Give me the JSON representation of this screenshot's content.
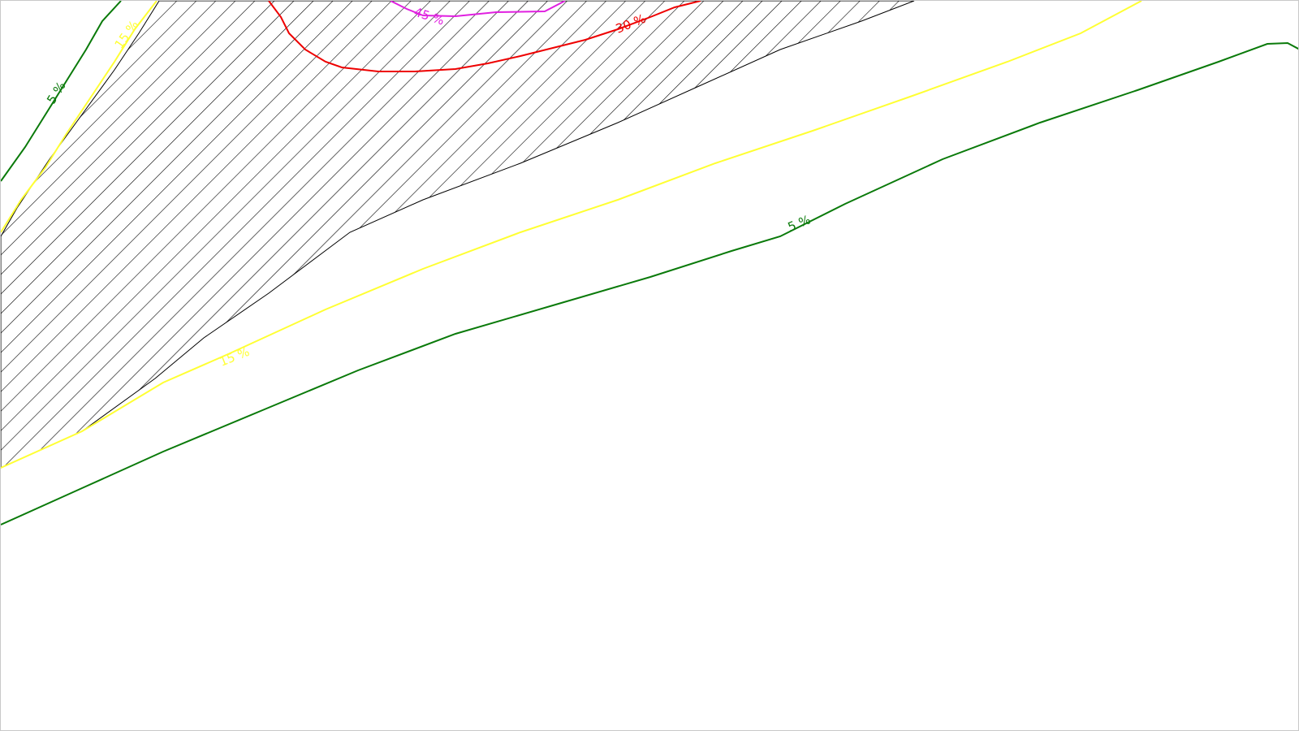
{
  "map": {
    "contours": [
      {
        "id": "c5-upper",
        "level_label": "5 %",
        "color": "#0a7a0a"
      },
      {
        "id": "c15-upper",
        "level_label": "15 %",
        "color": "#ffff33"
      },
      {
        "id": "c30",
        "level_label": "30 %",
        "color": "#ee0000"
      },
      {
        "id": "c45",
        "level_label": "45 %",
        "color": "#e020e0"
      },
      {
        "id": "c15-lower",
        "level_label": "15 %",
        "color": "#ffff33"
      },
      {
        "id": "c5-lower",
        "level_label": "5 %",
        "color": "#0a7a0a"
      }
    ],
    "hatch_color": "#000000",
    "background_color": "#ffffff"
  }
}
